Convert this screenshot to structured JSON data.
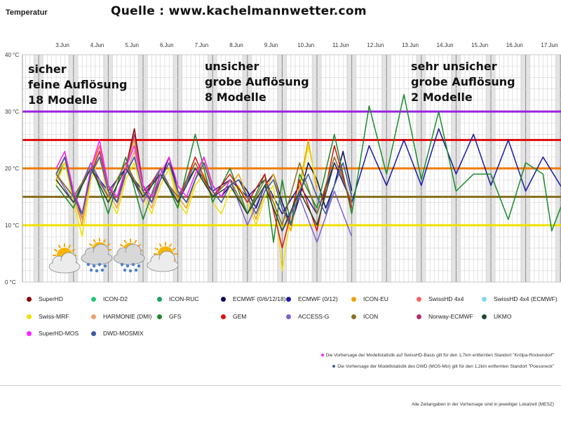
{
  "header": {
    "y_axis_title": "Temperatur",
    "source": "Quelle : www.kachelmannwetter.com"
  },
  "annotations": [
    {
      "lines": [
        "sicher",
        "feine Auflösung",
        "18 Modelle"
      ]
    },
    {
      "lines": [
        "unsicher",
        "grobe Auflösung",
        "8 Modelle"
      ]
    },
    {
      "lines": [
        "sehr unsicher",
        "grobe Auflösung",
        "2 Modelle"
      ]
    }
  ],
  "legend": [
    {
      "label": "SuperHD",
      "color": "#8b0000"
    },
    {
      "label": "ICON-D2",
      "color": "#22c77a"
    },
    {
      "label": "ICON-RUC",
      "color": "#1aa35c"
    },
    {
      "label": "ECMWF (0/6/12/18)",
      "color": "#0a0a5a"
    },
    {
      "label": "ECMWF (0/12)",
      "color": "#1a1aa0"
    },
    {
      "label": "ICON-EU",
      "color": "#f0a000"
    },
    {
      "label": "SwissHD 4x4",
      "color": "#ff6060"
    },
    {
      "label": "SwissHD 4x4 (ECMWF)",
      "color": "#7fd8f0"
    },
    {
      "label": "Swiss-MRF",
      "color": "#f0e000"
    },
    {
      "label": "HARMONIE (DMI)",
      "color": "#f0a070"
    },
    {
      "label": "GFS",
      "color": "#1a8a2a"
    },
    {
      "label": "GEM",
      "color": "#e01010"
    },
    {
      "label": "ACCESS-G",
      "color": "#8060d0"
    },
    {
      "label": "ICON",
      "color": "#8a7020"
    },
    {
      "label": "Norway-ECMWF",
      "color": "#b03070"
    },
    {
      "label": "UKMO",
      "color": "#1a4a2a"
    },
    {
      "label": "SuperHD-MOS",
      "color": "#ff20ff"
    },
    {
      "label": "DWD-MOSMIX",
      "color": "#3a5aa0"
    }
  ],
  "footnotes": [
    {
      "text": "Die Vorhersage der Modellstatistik auf SwissHD-Basis gilt für den 1,7km entfernten Standort \"Krölpa-Rockendorf\"",
      "color": "#ff20ff"
    },
    {
      "text": "Die Vorhersage der Modellstatistik des DWD (MOS-Mix) gilt für den 1,2km entfernten Standort \"Poessneck\"",
      "color": "#3a5aa0"
    }
  ],
  "timezone_note": "Alle Zeitangaben in der Vorhersage sind in jeweiliger Lokalzeit (MESZ)",
  "chart_data": {
    "type": "line",
    "title": "",
    "ylabel": "Temperatur",
    "ylim": [
      0,
      40
    ],
    "y_ticks": [
      "0 °C",
      "10 °C",
      "20 °C",
      "30 °C",
      "40 °C"
    ],
    "x_categories": [
      "3.Jun",
      "4.Jun",
      "5.Jun",
      "6.Jun",
      "7.Jun",
      "8.Jun",
      "9.Jun",
      "10.Jun",
      "11.Jun",
      "12.Jun",
      "13.Jun",
      "14.Jun",
      "15.Jun",
      "16.Jun",
      "17.Jun"
    ],
    "grid": true,
    "reference_lines": [
      {
        "value": 30,
        "color": "#9a20e0"
      },
      {
        "value": 25,
        "color": "#e01010"
      },
      {
        "value": 20,
        "color": "#f07a00"
      },
      {
        "value": 15,
        "color": "#8a7020"
      },
      {
        "value": 10,
        "color": "#f0e000"
      }
    ],
    "series": [
      {
        "name": "SuperHD",
        "color": "#8b0000",
        "x": [
          0,
          0.25,
          0.5,
          0.75,
          1,
          1.25,
          1.5,
          1.75,
          2,
          2.25,
          2.5,
          2.75,
          3,
          3.25,
          3.5,
          3.75,
          4,
          4.25,
          4.5,
          4.75,
          5
        ],
        "y": [
          19,
          22,
          15,
          11,
          20,
          24,
          17,
          14,
          20,
          27,
          17,
          14,
          18,
          21,
          16,
          14,
          18,
          22,
          17,
          15,
          18
        ]
      },
      {
        "name": "ICON-D2",
        "color": "#22c77a",
        "x": [
          0,
          0.25,
          0.5,
          0.75,
          1,
          1.25,
          1.5,
          1.75,
          2,
          2.25,
          2.5,
          2.75
        ],
        "y": [
          18,
          21,
          16,
          12,
          19,
          23,
          17,
          14,
          19,
          23,
          17,
          14
        ]
      },
      {
        "name": "ICON-RUC",
        "color": "#1aa35c",
        "x": [
          0,
          0.25,
          0.5,
          0.75,
          1,
          1.25,
          1.5
        ],
        "y": [
          18,
          21,
          15,
          12,
          19,
          22,
          16
        ]
      },
      {
        "name": "ECMWF (0/6/12/18)",
        "color": "#0a0a5a",
        "x": [
          0,
          0.25,
          0.5,
          0.75,
          1,
          1.25,
          1.5,
          1.75,
          2,
          2.25,
          2.5,
          2.75,
          3,
          3.25,
          3.5,
          3.75,
          4,
          4.25,
          4.5,
          4.75,
          5,
          5.25,
          5.5,
          5.75,
          6,
          6.25,
          6.5,
          6.75,
          7,
          7.25,
          7.5,
          7.75,
          8,
          8.25,
          8.5
        ],
        "y": [
          19,
          22,
          16,
          11,
          19,
          23,
          17,
          14,
          19,
          22,
          17,
          14,
          18,
          22,
          16,
          14,
          18,
          22,
          17,
          15,
          17,
          18,
          16,
          13,
          17,
          19,
          14,
          10,
          15,
          21,
          18,
          13,
          17,
          23,
          16
        ]
      },
      {
        "name": "ECMWF (0/12)",
        "color": "#1a1aa0",
        "x": [
          0,
          0.5,
          1,
          1.5,
          2,
          2.5,
          3,
          3.5,
          4,
          4.5,
          5,
          5.5,
          6,
          6.5,
          7,
          7.5,
          8,
          8.5,
          9,
          9.5,
          10,
          10.5,
          11,
          11.5,
          12,
          12.5,
          13,
          13.5,
          14,
          14.5,
          15
        ],
        "y": [
          19,
          15,
          20,
          16,
          20,
          16,
          19,
          15,
          20,
          16,
          18,
          15,
          18,
          12,
          17,
          12,
          21,
          14,
          24,
          17,
          25,
          17,
          27,
          19,
          26,
          17,
          25,
          16,
          22,
          17,
          14
        ]
      },
      {
        "name": "ICON-EU",
        "color": "#f0a000",
        "x": [
          0,
          0.25,
          0.5,
          0.75,
          1,
          1.25,
          1.5,
          1.75,
          2,
          2.25,
          2.5,
          2.75,
          3,
          3.25,
          3.5,
          3.75,
          4,
          4.25,
          4.5,
          4.75,
          5,
          5.25,
          5.5,
          5.75,
          6,
          6.25,
          6.5,
          6.75,
          7,
          7.25,
          7.5
        ],
        "y": [
          18,
          22,
          15,
          10,
          19,
          24,
          16,
          13,
          20,
          25,
          16,
          13,
          18,
          21,
          15,
          13,
          18,
          22,
          16,
          14,
          17,
          19,
          15,
          11,
          16,
          19,
          13,
          9,
          17,
          25,
          16
        ]
      },
      {
        "name": "SwissHD 4x4",
        "color": "#ff6060",
        "x": [
          0,
          0.25,
          0.5,
          0.75,
          1,
          1.25,
          1.5,
          1.75,
          2,
          2.25,
          2.5,
          2.75,
          3
        ],
        "y": [
          20,
          23,
          16,
          12,
          20,
          24,
          17,
          14,
          20,
          24,
          17,
          14,
          19
        ]
      },
      {
        "name": "SwissHD 4x4 (ECMWF)",
        "color": "#7fd8f0",
        "x": [
          0,
          0.25,
          0.5,
          0.75,
          1,
          1.25,
          1.5,
          1.75,
          2,
          2.25,
          2.5,
          2.75,
          3
        ],
        "y": [
          19,
          22,
          16,
          12,
          19,
          23,
          16,
          14,
          19,
          23,
          16,
          14,
          18
        ]
      },
      {
        "name": "Swiss-MRF",
        "color": "#f0e000",
        "x": [
          0,
          0.25,
          0.5,
          0.75,
          1,
          1.25,
          1.5,
          1.75,
          2,
          2.25,
          2.5,
          2.75,
          3,
          3.25,
          3.5,
          3.75,
          4,
          4.25,
          4.5,
          4.75,
          5,
          5.25,
          5.5,
          5.75,
          6,
          6.25,
          6.5,
          6.75,
          7,
          7.25,
          7.5
        ],
        "y": [
          17,
          21,
          14,
          8,
          18,
          22,
          15,
          12,
          18,
          21,
          15,
          12,
          17,
          20,
          14,
          12,
          17,
          19,
          14,
          12,
          16,
          17,
          14,
          10,
          15,
          17,
          2,
          12,
          16,
          24,
          17
        ]
      },
      {
        "name": "HARMONIE (DMI)",
        "color": "#f0a070",
        "x": [
          0,
          0.25,
          0.5,
          0.75,
          1,
          1.25,
          1.5,
          1.75,
          2,
          2.25,
          2.5,
          2.75,
          3
        ],
        "y": [
          19,
          22,
          15,
          11,
          19,
          23,
          16,
          13,
          19,
          23,
          16,
          13,
          18
        ]
      },
      {
        "name": "GFS",
        "color": "#1a8a2a",
        "x": [
          0,
          0.5,
          1,
          1.5,
          2,
          2.5,
          3,
          3.5,
          4,
          4.25,
          4.5,
          5,
          5.5,
          6,
          6.25,
          6.5,
          6.75,
          7,
          7.5,
          8,
          8.5,
          9,
          9.5,
          10,
          10.5,
          11,
          11.5,
          12,
          12.5,
          13,
          13.5,
          14,
          14.25,
          14.5,
          15,
          15.5
        ],
        "y": [
          17,
          13,
          21,
          12,
          22,
          11,
          20,
          13,
          26,
          20,
          14,
          20,
          12,
          19,
          7,
          18,
          10,
          19,
          13,
          26,
          12,
          31,
          19,
          33,
          18,
          30,
          16,
          19,
          19,
          11,
          21,
          19,
          9,
          13,
          17,
          12
        ]
      },
      {
        "name": "GEM",
        "color": "#e01010",
        "x": [
          0,
          0.5,
          1,
          1.5,
          2,
          2.5,
          3,
          3.5,
          4,
          4.5,
          5,
          5.5,
          6,
          6.5,
          7,
          7.5,
          8,
          8.5
        ],
        "y": [
          18,
          14,
          21,
          15,
          21,
          15,
          20,
          14,
          22,
          15,
          19,
          14,
          19,
          6,
          18,
          9,
          24,
          13
        ]
      },
      {
        "name": "ACCESS-G",
        "color": "#8060d0",
        "x": [
          0,
          0.5,
          1,
          1.5,
          2,
          2.5,
          3,
          3.5,
          4,
          4.5,
          5,
          5.5,
          6,
          6.5,
          7,
          7.5,
          8,
          8.5
        ],
        "y": [
          19,
          14,
          21,
          15,
          21,
          14,
          20,
          14,
          21,
          15,
          18,
          10,
          17,
          9,
          15,
          7,
          16,
          8
        ]
      },
      {
        "name": "ICON",
        "color": "#8a7020",
        "x": [
          0,
          0.5,
          1,
          1.5,
          2,
          2.5,
          3,
          3.5,
          4,
          4.5,
          5,
          5.5,
          6,
          6.5,
          7,
          7.5,
          8,
          8.5
        ],
        "y": [
          19,
          15,
          20,
          15,
          21,
          15,
          19,
          15,
          21,
          15,
          18,
          12,
          18,
          10,
          21,
          12,
          22,
          14
        ]
      },
      {
        "name": "Norway-ECMWF",
        "color": "#b03070",
        "x": [
          0,
          0.25,
          0.5,
          0.75,
          1,
          1.25,
          1.5,
          1.75,
          2,
          2.25,
          2.5,
          2.75,
          3
        ],
        "y": [
          19,
          22,
          16,
          12,
          19,
          23,
          17,
          14,
          20,
          26,
          17,
          14,
          19
        ]
      },
      {
        "name": "UKMO",
        "color": "#1a4a2a",
        "x": [
          0,
          0.5,
          1,
          1.5,
          2,
          2.5,
          3,
          3.5,
          4,
          4.5,
          5,
          5.5,
          6,
          6.5,
          7,
          7.5,
          8
        ],
        "y": [
          18,
          14,
          20,
          14,
          20,
          15,
          19,
          14,
          20,
          15,
          17,
          12,
          17,
          9,
          16,
          10,
          21
        ]
      },
      {
        "name": "SuperHD-MOS",
        "color": "#ff20ff",
        "x": [
          0,
          0.25,
          0.5,
          0.75,
          1,
          1.25,
          1.5,
          1.75,
          2,
          2.25,
          2.5,
          2.75,
          3,
          3.25,
          3.5,
          3.75,
          4,
          4.25,
          4.5,
          4.75,
          5
        ],
        "y": [
          20,
          23,
          16,
          12,
          20,
          25,
          17,
          15,
          20,
          24,
          17,
          15,
          19,
          22,
          17,
          15,
          19,
          22,
          17,
          15,
          18
        ]
      },
      {
        "name": "DWD-MOSMIX",
        "color": "#3a5aa0",
        "x": [
          0,
          0.25,
          0.5,
          0.75,
          1,
          1.25,
          1.5,
          1.75,
          2,
          2.25,
          2.5,
          2.75,
          3,
          3.25,
          3.5,
          3.75,
          4,
          4.25,
          4.5,
          4.75,
          5,
          5.25,
          5.5,
          5.75,
          6,
          6.25,
          6.5,
          6.75,
          7,
          7.25,
          7.5,
          7.75,
          8,
          8.25,
          8.5
        ],
        "y": [
          19,
          22,
          15,
          12,
          19,
          22,
          16,
          14,
          19,
          22,
          16,
          14,
          18,
          21,
          16,
          14,
          18,
          21,
          16,
          14,
          17,
          18,
          15,
          12,
          16,
          18,
          13,
          10,
          16,
          19,
          15,
          12,
          17,
          21,
          15
        ]
      }
    ]
  }
}
